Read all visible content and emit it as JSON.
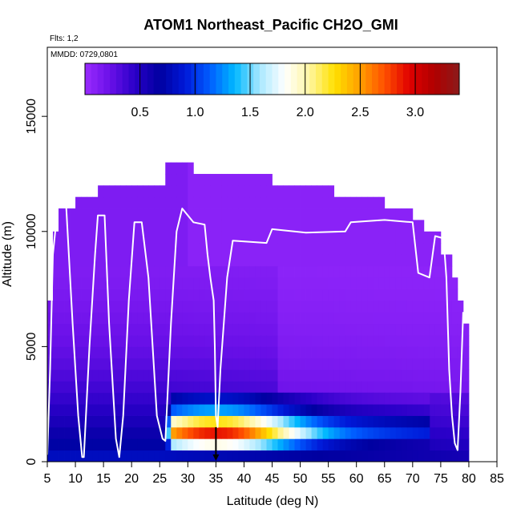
{
  "chart_data": {
    "type": "heatmap",
    "title": "ATOM1 Northeast_Pacific CH2O_GMI",
    "flights_label": "Flts: 1,2",
    "mmdd_label": "MMDD: 0729,0801",
    "xlabel": "Latitude (deg N)",
    "ylabel": "Altitude (m)",
    "xlim": [
      5,
      85
    ],
    "ylim": [
      0,
      18000
    ],
    "x_ticks": [
      "5",
      "10",
      "15",
      "20",
      "25",
      "30",
      "35",
      "40",
      "45",
      "50",
      "55",
      "60",
      "65",
      "70",
      "75",
      "80",
      "85"
    ],
    "y_ticks": [
      "0",
      "5000",
      "10000",
      "15000"
    ],
    "colorbar": {
      "range": [
        0,
        3.4
      ],
      "ticks": [
        "0.5",
        "1.0",
        "1.5",
        "2.0",
        "2.5",
        "3.0"
      ],
      "colors": [
        "#9a2bff",
        "#6a10e8",
        "#2a00c8",
        "#0000a0",
        "#0018d8",
        "#005cff",
        "#00b8ff",
        "#a8e8ff",
        "#ffffff",
        "#fff6a0",
        "#ffe000",
        "#ffa000",
        "#ff5000",
        "#e00000",
        "#b00000",
        "#8b1a1a"
      ]
    },
    "column_tops_m": [
      {
        "lat": 5,
        "top": 7000
      },
      {
        "lat": 6,
        "top": 10000
      },
      {
        "lat": 7,
        "top": 11000
      },
      {
        "lat": 10,
        "top": 11500
      },
      {
        "lat": 14,
        "top": 12000
      },
      {
        "lat": 26,
        "top": 13000
      },
      {
        "lat": 31,
        "top": 12500
      },
      {
        "lat": 45,
        "top": 12000
      },
      {
        "lat": 56,
        "top": 11500
      },
      {
        "lat": 65,
        "top": 11000
      },
      {
        "lat": 70,
        "top": 10500
      },
      {
        "lat": 72,
        "top": 10000
      },
      {
        "lat": 75,
        "top": 9000
      },
      {
        "lat": 77,
        "top": 8000
      },
      {
        "lat": 78,
        "top": 7000
      },
      {
        "lat": 79,
        "top": 6000
      },
      {
        "lat": 80,
        "top": 0
      }
    ],
    "surface_layer": {
      "lat_range": [
        26,
        73
      ],
      "rows": [
        {
          "alt_range": [
            500,
            1000
          ],
          "peak_value": 2.0
        },
        {
          "alt_range": [
            1000,
            1500
          ],
          "peak_value": 3.1
        },
        {
          "alt_range": [
            1500,
            2000
          ],
          "peak_value": 2.4
        },
        {
          "alt_range": [
            2000,
            2500
          ],
          "peak_value": 1.4
        },
        {
          "alt_range": [
            2500,
            3000
          ],
          "peak_value": 0.9
        }
      ]
    },
    "flight_track": {
      "name": "aircraft track",
      "points": [
        [
          5,
          300
        ],
        [
          5.5,
          4000
        ],
        [
          6,
          9000
        ],
        [
          7,
          11400
        ],
        [
          8.3,
          11400
        ],
        [
          9.5,
          6000
        ],
        [
          10.5,
          2000
        ],
        [
          11.2,
          200
        ],
        [
          11.5,
          200
        ],
        [
          12.5,
          5000
        ],
        [
          13.5,
          9000
        ],
        [
          14,
          10700
        ],
        [
          15.2,
          10700
        ],
        [
          16,
          6000
        ],
        [
          17.2,
          1000
        ],
        [
          17.8,
          200
        ],
        [
          18.5,
          2000
        ],
        [
          19.5,
          7000
        ],
        [
          20.5,
          10400
        ],
        [
          21.8,
          10400
        ],
        [
          23,
          8000
        ],
        [
          24.5,
          2000
        ],
        [
          25.5,
          1000
        ],
        [
          26,
          900
        ],
        [
          27,
          6000
        ],
        [
          28,
          10000
        ],
        [
          29,
          11000
        ],
        [
          31,
          10400
        ],
        [
          33,
          10300
        ],
        [
          33.5,
          9000
        ],
        [
          34,
          8000
        ],
        [
          34.6,
          7000
        ],
        [
          34.8,
          5000
        ],
        [
          35,
          2000
        ],
        [
          35.3,
          1500
        ],
        [
          35.8,
          4000
        ],
        [
          37,
          8000
        ],
        [
          38,
          9600
        ],
        [
          44,
          9500
        ],
        [
          45,
          10100
        ],
        [
          51,
          9950
        ],
        [
          58,
          10000
        ],
        [
          59,
          10400
        ],
        [
          65,
          10500
        ],
        [
          70,
          10400
        ],
        [
          71,
          8200
        ],
        [
          73,
          8000
        ],
        [
          74,
          9800
        ],
        [
          75.5,
          9700
        ],
        [
          76,
          8000
        ],
        [
          76.5,
          4000
        ],
        [
          77,
          2000
        ],
        [
          77.5,
          800
        ],
        [
          78,
          500
        ],
        [
          78.5,
          3000
        ],
        [
          79,
          6500
        ]
      ]
    },
    "marker": {
      "lat": 35,
      "alt": 500,
      "label": "arrow"
    }
  }
}
